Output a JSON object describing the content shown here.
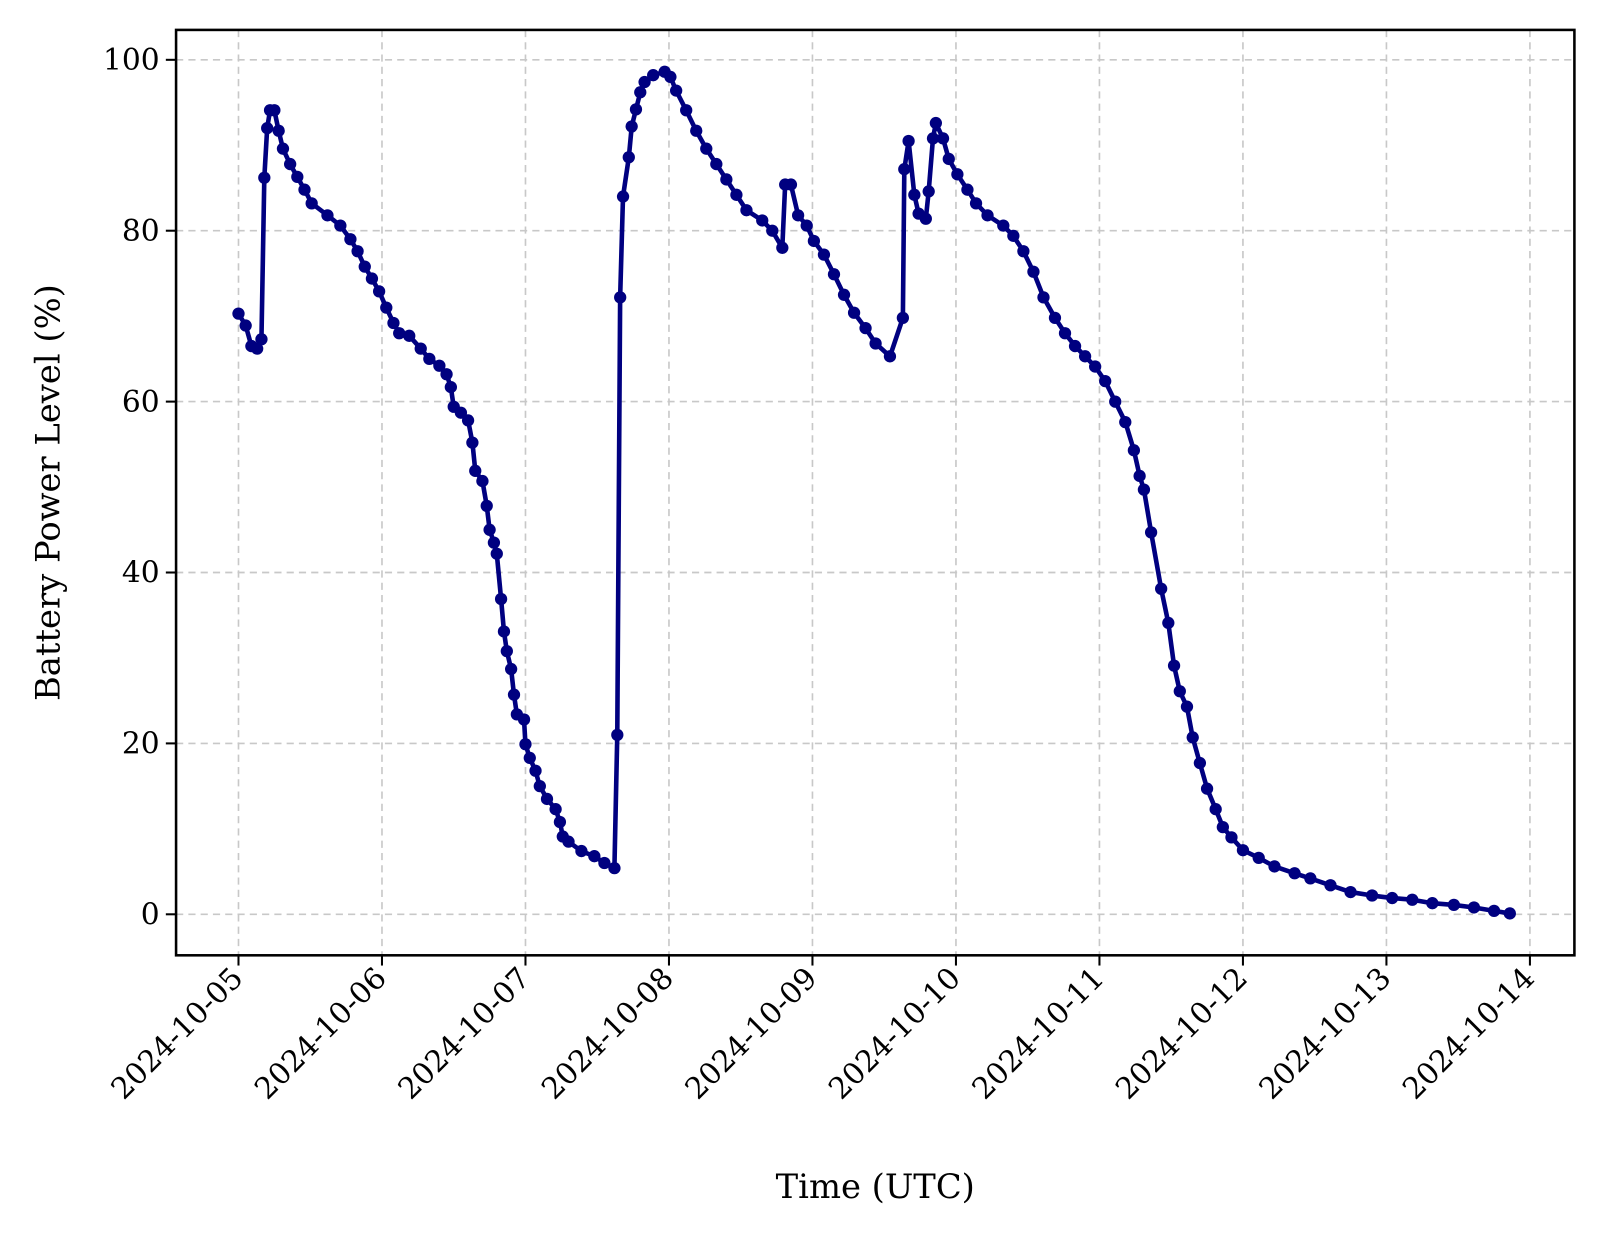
{
  "chart_data": {
    "type": "line",
    "xlabel": "Time (UTC)",
    "ylabel": "Battery Power Level (%)",
    "color": "#000080",
    "grid": true,
    "xlim": [
      -0.435,
      9.31
    ],
    "ylim": [
      -4.8,
      103.5
    ],
    "xticks": [
      {
        "value": 0,
        "label": "2024-10-05"
      },
      {
        "value": 1,
        "label": "2024-10-06"
      },
      {
        "value": 2,
        "label": "2024-10-07"
      },
      {
        "value": 3,
        "label": "2024-10-08"
      },
      {
        "value": 4,
        "label": "2024-10-09"
      },
      {
        "value": 5,
        "label": "2024-10-10"
      },
      {
        "value": 6,
        "label": "2024-10-11"
      },
      {
        "value": 7,
        "label": "2024-10-12"
      },
      {
        "value": 8,
        "label": "2024-10-13"
      },
      {
        "value": 9,
        "label": "2024-10-14"
      }
    ],
    "yticks": [
      0,
      20,
      40,
      60,
      80,
      100
    ],
    "x": [
      0.0,
      0.05,
      0.09,
      0.13,
      0.16,
      0.18,
      0.2,
      0.22,
      0.25,
      0.28,
      0.31,
      0.36,
      0.41,
      0.46,
      0.51,
      0.62,
      0.71,
      0.78,
      0.83,
      0.88,
      0.93,
      0.98,
      1.03,
      1.08,
      1.12,
      1.19,
      1.27,
      1.33,
      1.4,
      1.45,
      1.48,
      1.5,
      1.55,
      1.6,
      1.63,
      1.65,
      1.7,
      1.73,
      1.75,
      1.78,
      1.8,
      1.83,
      1.85,
      1.87,
      1.9,
      1.92,
      1.94,
      1.99,
      2.0,
      2.03,
      2.07,
      2.1,
      2.15,
      2.21,
      2.24,
      2.26,
      2.3,
      2.39,
      2.48,
      2.55,
      2.62,
      2.64,
      2.66,
      2.68,
      2.72,
      2.74,
      2.77,
      2.8,
      2.83,
      2.89,
      2.97,
      3.01,
      3.05,
      3.12,
      3.19,
      3.26,
      3.33,
      3.4,
      3.47,
      3.54,
      3.65,
      3.72,
      3.79,
      3.81,
      3.85,
      3.9,
      3.96,
      4.01,
      4.08,
      4.15,
      4.22,
      4.29,
      4.37,
      4.44,
      4.54,
      4.63,
      4.64,
      4.67,
      4.71,
      4.74,
      4.79,
      4.81,
      4.84,
      4.86,
      4.91,
      4.95,
      5.01,
      5.08,
      5.14,
      5.22,
      5.33,
      5.4,
      5.47,
      5.54,
      5.61,
      5.69,
      5.76,
      5.83,
      5.9,
      5.97,
      6.04,
      6.11,
      6.18,
      6.24,
      6.28,
      6.31,
      6.36,
      6.43,
      6.48,
      6.52,
      6.56,
      6.61,
      6.65,
      6.7,
      6.75,
      6.81,
      6.86,
      6.92,
      7.0,
      7.11,
      7.22,
      7.36,
      7.47,
      7.61,
      7.75,
      7.9,
      8.04,
      8.18,
      8.32,
      8.47,
      8.61,
      8.75,
      8.86
    ],
    "values": [
      70.3,
      68.9,
      66.5,
      66.2,
      67.3,
      86.2,
      92,
      94.1,
      94.1,
      91.7,
      89.6,
      87.8,
      86.3,
      84.8,
      83.2,
      81.8,
      80.6,
      79,
      77.6,
      75.8,
      74.4,
      72.9,
      71,
      69.2,
      68,
      67.7,
      66.2,
      65,
      64.2,
      63.2,
      61.7,
      59.4,
      58.7,
      57.8,
      55.2,
      51.9,
      50.7,
      47.8,
      45,
      43.5,
      42.2,
      36.9,
      33.1,
      30.8,
      28.7,
      25.7,
      23.4,
      22.8,
      19.9,
      18.3,
      16.8,
      15,
      13.5,
      12.3,
      10.8,
      9.1,
      8.5,
      7.4,
      6.8,
      6,
      5.4,
      21,
      72.2,
      84,
      88.6,
      92.2,
      94.2,
      96.2,
      97.4,
      98.2,
      98.6,
      98,
      96.4,
      94.1,
      91.7,
      89.6,
      87.8,
      86,
      84.2,
      82.4,
      81.2,
      80,
      78,
      85.4,
      85.4,
      81.8,
      80.6,
      78.8,
      77.2,
      74.9,
      72.5,
      70.4,
      68.6,
      66.8,
      65.3,
      69.8,
      87.2,
      90.5,
      84.2,
      82,
      81.4,
      84.6,
      90.8,
      92.6,
      90.8,
      88.4,
      86.6,
      84.8,
      83.2,
      81.8,
      80.6,
      79.4,
      77.6,
      75.2,
      72.2,
      69.8,
      68,
      66.5,
      65.3,
      64.1,
      62.4,
      60,
      57.6,
      54.3,
      51.3,
      49.7,
      44.7,
      38.1,
      34.1,
      29.1,
      26.1,
      24.3,
      20.7,
      17.7,
      14.7,
      12.3,
      10.2,
      9,
      7.5,
      6.6,
      5.6,
      4.8,
      4.2,
      3.4,
      2.6,
      2.2,
      1.9,
      1.7,
      1.3,
      1.1,
      0.8,
      0.4,
      0.1
    ]
  }
}
